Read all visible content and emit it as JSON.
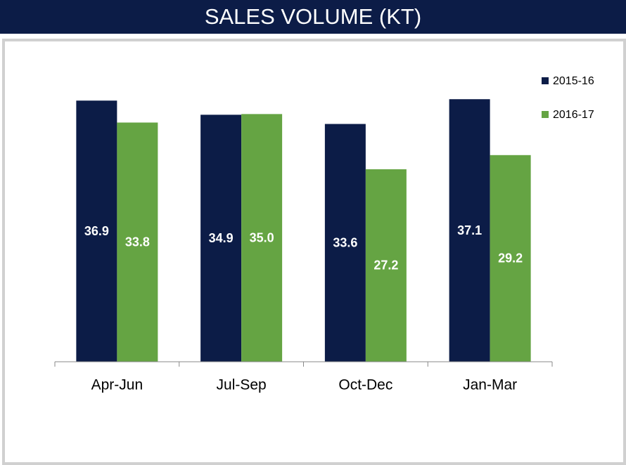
{
  "chart_data": {
    "type": "bar",
    "title": "SALES VOLUME (KT)",
    "categories": [
      "Apr-Jun",
      "Jul-Sep",
      "Oct-Dec",
      "Jan-Mar"
    ],
    "series": [
      {
        "name": "2015-16",
        "color": "#0c1c47",
        "values": [
          36.9,
          34.9,
          33.6,
          37.1
        ],
        "value_labels": [
          "36.9",
          "34.9",
          "33.6",
          "37.1"
        ]
      },
      {
        "name": "2016-17",
        "color": "#65a443",
        "values": [
          33.8,
          35.0,
          27.2,
          29.2
        ],
        "value_labels": [
          "33.8",
          "35.0",
          "27.2",
          "29.2"
        ]
      }
    ],
    "ylim": [
      0,
      40
    ],
    "legend": "top-right"
  }
}
